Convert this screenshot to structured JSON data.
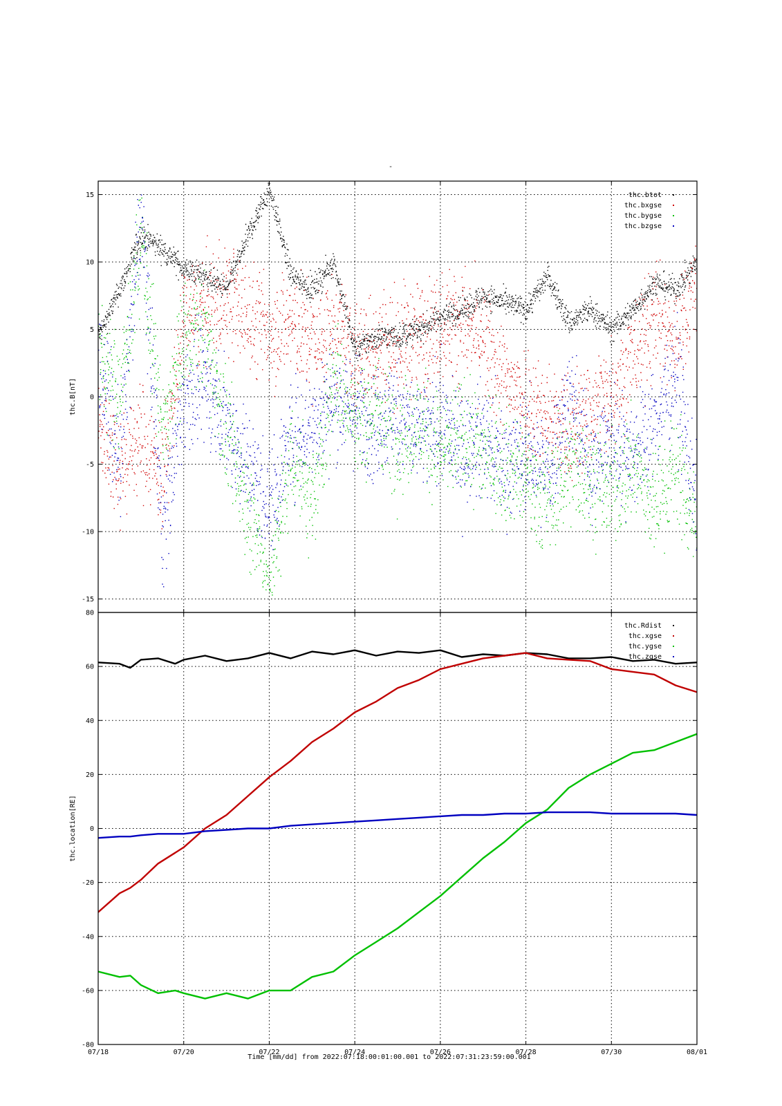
{
  "figure": {
    "top_title": "-",
    "xlabel": "Time [mm/dd]  from 2022:07:18:00:01:00.001  to  2022:07:31:23:59:00.001"
  },
  "chart_data": [
    {
      "type": "scatter",
      "title": "",
      "ylabel": "thc.B[nT]",
      "xlim": [
        "07/18",
        "08/01"
      ],
      "ylim": [
        -16,
        16
      ],
      "x_ticks": [
        "07/18",
        "07/20",
        "07/22",
        "07/24",
        "07/26",
        "07/28",
        "07/30",
        "08/01"
      ],
      "y_ticks": [
        15,
        10,
        5,
        0,
        -5,
        -10,
        -15
      ],
      "grid": true,
      "legend": "top-right",
      "x_days": [
        0,
        0.5,
        1,
        1.5,
        2,
        2.5,
        3,
        3.5,
        4,
        4.5,
        5,
        5.5,
        6,
        6.5,
        7,
        7.5,
        8,
        8.5,
        9,
        9.5,
        10,
        10.5,
        11,
        11.5,
        12,
        12.5,
        13,
        13.5,
        14
      ],
      "series": [
        {
          "name": "thc.btot",
          "color": "#000000",
          "values": [
            4.5,
            8,
            12,
            11,
            9.5,
            9,
            8,
            12,
            15.5,
            9,
            8,
            10,
            3.5,
            4.5,
            4.5,
            5,
            6,
            6.5,
            7.5,
            7,
            6.5,
            9,
            5.5,
            6.5,
            5,
            6.5,
            8.5,
            8,
            10
          ]
        },
        {
          "name": "thc.bxgse",
          "color": "#d00000",
          "values": [
            -2,
            -5,
            -3,
            -6,
            6,
            6.5,
            7.5,
            6,
            5,
            5.5,
            4,
            5,
            3,
            4,
            4,
            4.5,
            5.5,
            5.5,
            4,
            1,
            0,
            -1.5,
            -2.5,
            -1,
            0.5,
            3,
            6,
            4,
            9
          ]
        },
        {
          "name": "thc.bygse",
          "color": "#00c000",
          "values": [
            3,
            0,
            12,
            -3,
            4,
            5,
            -3,
            -8,
            -14,
            -4,
            -8,
            2,
            -2,
            -1,
            -3,
            -2,
            -4,
            -3,
            -4,
            -5,
            -6,
            -8,
            -5,
            -6,
            -7,
            -5,
            -8,
            -5,
            -10
          ]
        },
        {
          "name": "thc.bzgse",
          "color": "#0000c0",
          "values": [
            3,
            -5,
            14,
            -10,
            0,
            1,
            -2,
            -5,
            -8,
            -3,
            -2,
            0,
            -1,
            -2,
            -1,
            -3,
            -2,
            -4,
            -3,
            -5,
            -4,
            -6,
            0,
            -5,
            -3,
            -4,
            -2,
            2,
            -9
          ]
        }
      ]
    },
    {
      "type": "line",
      "title": "",
      "ylabel": "thc.location[RE]",
      "xlim": [
        "07/18",
        "08/01"
      ],
      "ylim": [
        -80,
        80
      ],
      "x_ticks": [
        "07/18",
        "07/20",
        "07/22",
        "07/24",
        "07/26",
        "07/28",
        "07/30",
        "08/01"
      ],
      "y_ticks": [
        80,
        60,
        40,
        20,
        0,
        -20,
        -40,
        -60,
        -80
      ],
      "grid": true,
      "legend": "top-right",
      "x_days": [
        0,
        0.5,
        0.75,
        1,
        1.4,
        1.8,
        2,
        2.5,
        3,
        3.5,
        4,
        4.5,
        5,
        5.5,
        6,
        6.5,
        7,
        7.5,
        8,
        8.5,
        9,
        9.5,
        10,
        10.5,
        11,
        11.5,
        12,
        12.5,
        13,
        13.5,
        14
      ],
      "series": [
        {
          "name": "thc.Rdist",
          "color": "#000000",
          "values": [
            61.5,
            61,
            59.5,
            62.5,
            63,
            61,
            62.5,
            64,
            62,
            63,
            65,
            63,
            65.5,
            64.5,
            66,
            64,
            65.5,
            65,
            66,
            63.5,
            64.5,
            64,
            65,
            64.5,
            63,
            63,
            63.5,
            62,
            62.5,
            61,
            61.5
          ]
        },
        {
          "name": "thc.xgse",
          "color": "#c00000",
          "values": [
            -31,
            -24,
            -22,
            -19,
            -13,
            -9,
            -7,
            0,
            5,
            12,
            19,
            25,
            32,
            37,
            43,
            47,
            52,
            55,
            59,
            61,
            63,
            64,
            65,
            63,
            62.5,
            62,
            59,
            58,
            57,
            53,
            50.5
          ]
        },
        {
          "name": "thc.ygse",
          "color": "#00c000",
          "values": [
            -53,
            -55,
            -54.5,
            -58,
            -61,
            -60,
            -61,
            -63,
            -61,
            -63,
            -60,
            -60,
            -55,
            -53,
            -47,
            -42,
            -37,
            -31,
            -25,
            -18,
            -11,
            -5,
            2,
            7,
            15,
            20,
            24,
            28,
            29,
            32,
            35
          ]
        },
        {
          "name": "thc.zgse",
          "color": "#0000c0",
          "values": [
            -3.5,
            -3,
            -3,
            -2.5,
            -2,
            -2,
            -2,
            -1,
            -0.5,
            0,
            0,
            1,
            1.5,
            2,
            2.5,
            3,
            3.5,
            4,
            4.5,
            5,
            5,
            5.5,
            5.5,
            6,
            6,
            6,
            5.5,
            5.5,
            5.5,
            5.5,
            5
          ]
        }
      ]
    }
  ]
}
